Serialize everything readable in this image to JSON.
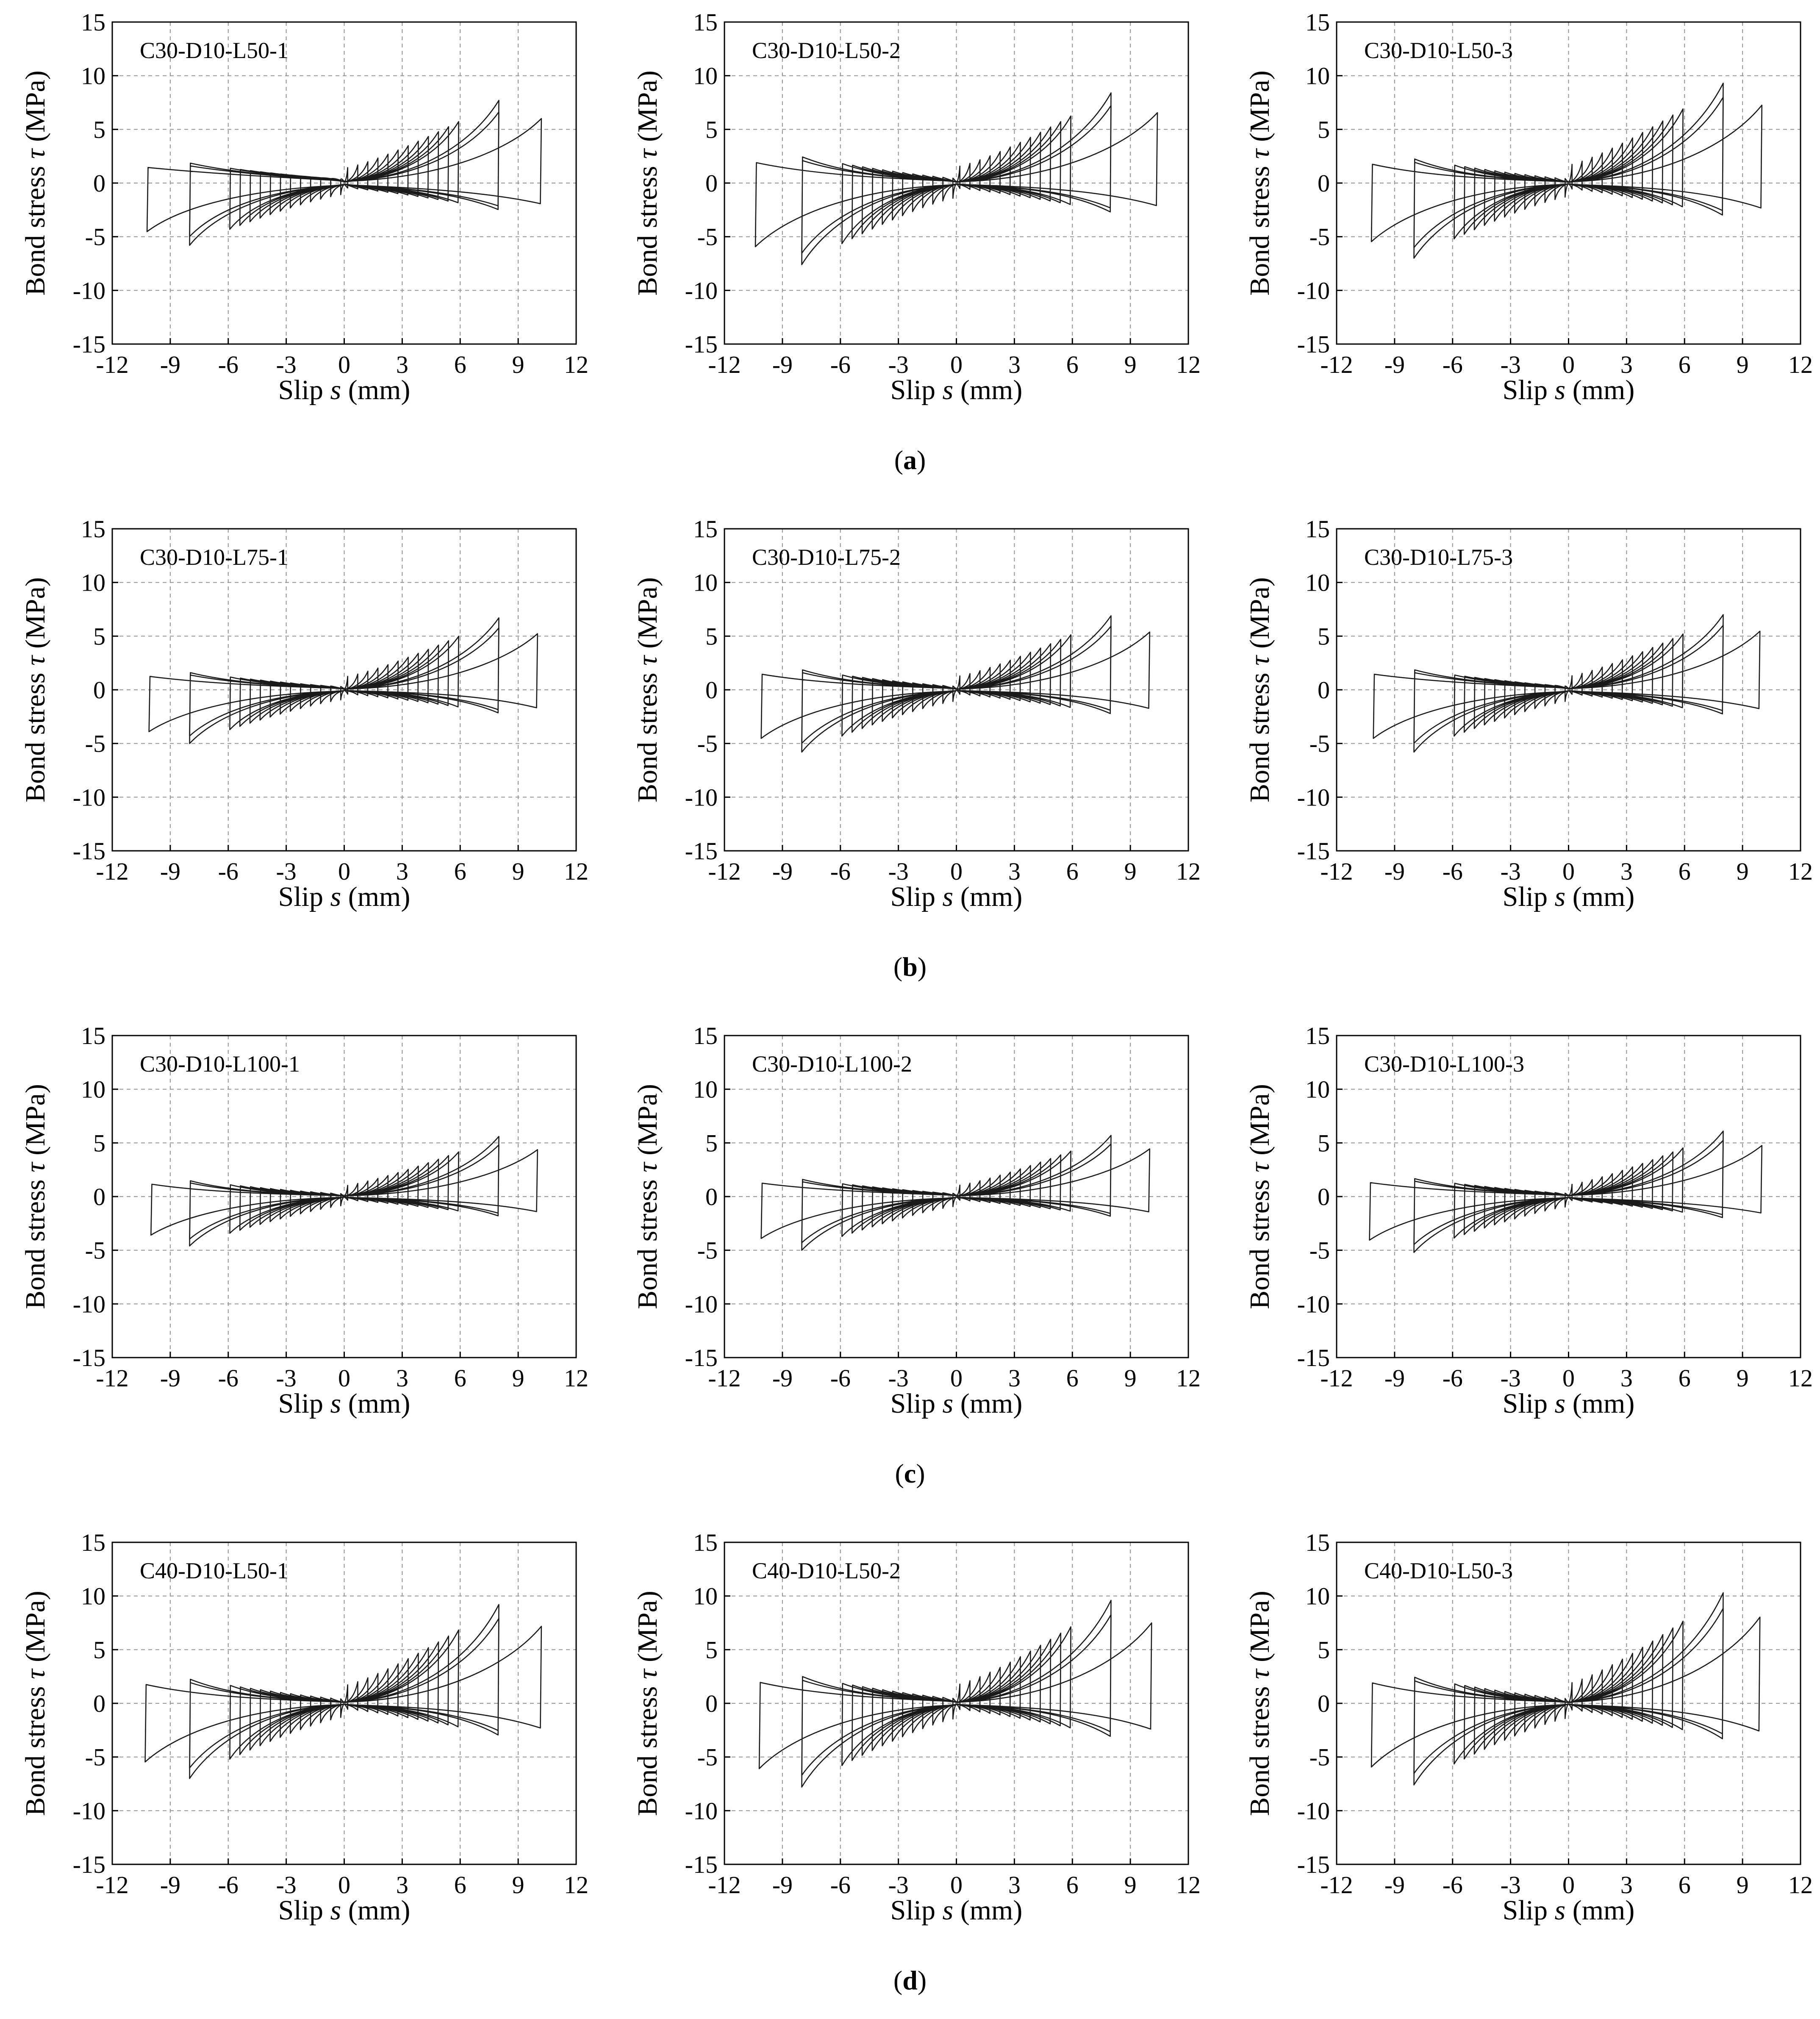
{
  "figure": {
    "row_labels": [
      "a",
      "b",
      "c",
      "d"
    ],
    "x_label": {
      "prefix": "Slip ",
      "symbol": "s",
      "suffix": " (mm)"
    },
    "y_label": {
      "prefix": "Bond stress ",
      "symbol": "τ",
      "suffix": " (MPa)"
    },
    "x_ticks": [
      "-12",
      "-9",
      "-6",
      "-3",
      "0",
      "3",
      "6",
      "9",
      "12"
    ],
    "y_ticks": [
      "15",
      "10",
      "5",
      "0",
      "-5",
      "-10",
      "-15"
    ]
  },
  "colors": {
    "curve": "#1a1a1a",
    "grid": "#9a9a9a",
    "frame": "#000000",
    "background": "#ffffff"
  },
  "chart_data": [
    {
      "type": "line",
      "title": "C30-D10-L50-1",
      "xlabel": "Slip s (mm)",
      "ylabel": "Bond stress τ (MPa)",
      "xlim": [
        -12,
        12
      ],
      "ylim": [
        -15,
        15
      ],
      "grid": true,
      "smax_pos": 10.2,
      "smax_neg": -10.2,
      "peak_pos": 7.7,
      "peak_neg": -5.8,
      "res_pos": 0.4,
      "res_neg": -0.5
    },
    {
      "type": "line",
      "title": "C30-D10-L50-2",
      "xlabel": "Slip s (mm)",
      "ylabel": "Bond stress τ (MPa)",
      "xlim": [
        -12,
        12
      ],
      "ylim": [
        -15,
        15
      ],
      "grid": true,
      "smax_pos": 10.4,
      "smax_neg": -10.4,
      "peak_pos": 8.4,
      "peak_neg": -7.6,
      "res_pos": 0.3,
      "res_neg": -0.4
    },
    {
      "type": "line",
      "title": "C30-D10-L50-3",
      "xlabel": "Slip s (mm)",
      "ylabel": "Bond stress τ (MPa)",
      "xlim": [
        -12,
        12
      ],
      "ylim": [
        -15,
        15
      ],
      "grid": true,
      "smax_pos": 10.0,
      "smax_neg": -10.2,
      "peak_pos": 9.3,
      "peak_neg": -7.0,
      "res_pos": 0.3,
      "res_neg": -0.3
    },
    {
      "type": "line",
      "title": "C30-D10-L75-1",
      "xlabel": "Slip s (mm)",
      "ylabel": "Bond stress τ (MPa)",
      "xlim": [
        -12,
        12
      ],
      "ylim": [
        -15,
        15
      ],
      "grid": true,
      "smax_pos": 10.0,
      "smax_neg": -10.1,
      "peak_pos": 6.7,
      "peak_neg": -5.0,
      "res_pos": 0.2,
      "res_neg": -0.3
    },
    {
      "type": "line",
      "title": "C30-D10-L75-2",
      "xlabel": "Slip s (mm)",
      "ylabel": "Bond stress τ (MPa)",
      "xlim": [
        -12,
        12
      ],
      "ylim": [
        -15,
        15
      ],
      "grid": true,
      "smax_pos": 10.0,
      "smax_neg": -10.1,
      "peak_pos": 6.9,
      "peak_neg": -5.8,
      "res_pos": 0.2,
      "res_neg": -0.3
    },
    {
      "type": "line",
      "title": "C30-D10-L75-3",
      "xlabel": "Slip s (mm)",
      "ylabel": "Bond stress τ (MPa)",
      "xlim": [
        -12,
        12
      ],
      "ylim": [
        -15,
        15
      ],
      "grid": true,
      "smax_pos": 9.9,
      "smax_neg": -10.1,
      "peak_pos": 7.0,
      "peak_neg": -5.8,
      "res_pos": 0.3,
      "res_neg": -0.4
    },
    {
      "type": "line",
      "title": "C30-D10-L100-1",
      "xlabel": "Slip s (mm)",
      "ylabel": "Bond stress τ (MPa)",
      "xlim": [
        -12,
        12
      ],
      "ylim": [
        -15,
        15
      ],
      "grid": true,
      "smax_pos": 10.0,
      "smax_neg": -10.0,
      "peak_pos": 5.6,
      "peak_neg": -4.6,
      "res_pos": 0.2,
      "res_neg": -0.2
    },
    {
      "type": "line",
      "title": "C30-D10-L100-2",
      "xlabel": "Slip s (mm)",
      "ylabel": "Bond stress τ (MPa)",
      "xlim": [
        -12,
        12
      ],
      "ylim": [
        -15,
        15
      ],
      "grid": true,
      "smax_pos": 10.0,
      "smax_neg": -10.1,
      "peak_pos": 5.7,
      "peak_neg": -5.0,
      "res_pos": 0.2,
      "res_neg": -0.3
    },
    {
      "type": "line",
      "title": "C30-D10-L100-3",
      "xlabel": "Slip s (mm)",
      "ylabel": "Bond stress τ (MPa)",
      "xlim": [
        -12,
        12
      ],
      "ylim": [
        -15,
        15
      ],
      "grid": true,
      "smax_pos": 10.0,
      "smax_neg": -10.3,
      "peak_pos": 6.1,
      "peak_neg": -5.2,
      "res_pos": 0.3,
      "res_neg": -0.3
    },
    {
      "type": "line",
      "title": "C40-D10-L50-1",
      "xlabel": "Slip s (mm)",
      "ylabel": "Bond stress τ (MPa)",
      "xlim": [
        -12,
        12
      ],
      "ylim": [
        -15,
        15
      ],
      "grid": true,
      "smax_pos": 10.2,
      "smax_neg": -10.3,
      "peak_pos": 9.2,
      "peak_neg": -7.0,
      "res_pos": 0.3,
      "res_neg": -0.3
    },
    {
      "type": "line",
      "title": "C40-D10-L50-2",
      "xlabel": "Slip s (mm)",
      "ylabel": "Bond stress τ (MPa)",
      "xlim": [
        -12,
        12
      ],
      "ylim": [
        -15,
        15
      ],
      "grid": true,
      "smax_pos": 10.1,
      "smax_neg": -10.2,
      "peak_pos": 9.6,
      "peak_neg": -7.8,
      "res_pos": 0.3,
      "res_neg": -0.4
    },
    {
      "type": "line",
      "title": "C40-D10-L50-3",
      "xlabel": "Slip s (mm)",
      "ylabel": "Bond stress τ (MPa)",
      "xlim": [
        -12,
        12
      ],
      "ylim": [
        -15,
        15
      ],
      "grid": true,
      "smax_pos": 9.9,
      "smax_neg": -10.2,
      "peak_pos": 10.3,
      "peak_neg": -7.6,
      "res_pos": 0.3,
      "res_neg": -0.3
    }
  ]
}
